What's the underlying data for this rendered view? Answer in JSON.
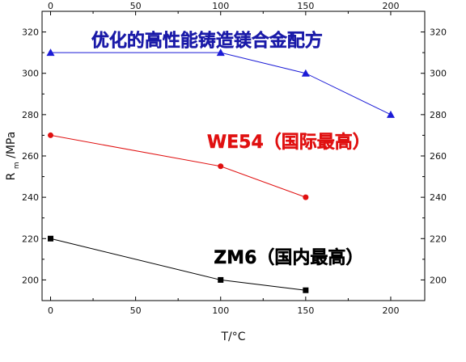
{
  "chart_data": {
    "type": "line",
    "xlabel": "T/°C",
    "ylabel_main": "R",
    "ylabel_sub": "m",
    "ylabel_unit": "/MPa",
    "xlim": [
      -5,
      220
    ],
    "ylim": [
      190,
      330
    ],
    "xticks": [
      0,
      50,
      100,
      150,
      200
    ],
    "yticks": [
      200,
      220,
      240,
      260,
      280,
      300,
      320
    ],
    "grid": false,
    "series": [
      {
        "name": "优化的高性能铸造镁合金配方",
        "x": [
          0,
          100,
          150,
          200
        ],
        "values": [
          310,
          310,
          300,
          280
        ],
        "color": "#1b1bd6",
        "marker": "triangle"
      },
      {
        "name": "WE54（国际最高）",
        "x": [
          0,
          100,
          150
        ],
        "values": [
          270,
          255,
          240
        ],
        "color": "#e01010",
        "marker": "circle"
      },
      {
        "name": "ZM6（国内最高）",
        "x": [
          0,
          100,
          150
        ],
        "values": [
          220,
          200,
          195
        ],
        "color": "#000000",
        "marker": "square"
      }
    ],
    "annotations": [
      {
        "text": "优化的高性能铸造镁合金配方",
        "color": "#1a1aa8",
        "x": 92,
        "y": 313
      },
      {
        "text": "WE54（国际最高）",
        "color": "#e01010",
        "x": 140,
        "y": 264
      },
      {
        "text": "ZM6（国内最高）",
        "color": "#000000",
        "x": 140,
        "y": 208
      }
    ]
  }
}
